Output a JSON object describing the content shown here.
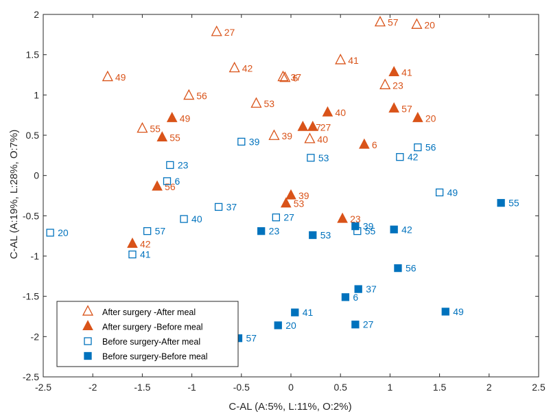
{
  "chart_data": {
    "type": "scatter",
    "xlabel": "C-AL (A:5%, L:11%, O:2%)",
    "ylabel": "C-AL (A:19%, L:28%, O:7%)",
    "xlim": [
      -2.5,
      2.5
    ],
    "ylim": [
      -2.5,
      2
    ],
    "xticks": [
      "-2.5",
      "-2",
      "-1.5",
      "-1",
      "-0.5",
      "0",
      "0.5",
      "1",
      "1.5",
      "2",
      "2.5"
    ],
    "yticks": [
      "-2.5",
      "-2",
      "-1.5",
      "-1",
      "-0.5",
      "0",
      "0.5",
      "1",
      "1.5",
      "2"
    ],
    "grid": false,
    "legend_position": "bottom-left",
    "colors": {
      "orange": "#d95319",
      "blue": "#0072bd"
    },
    "series": [
      {
        "name": "After surgery -After meal",
        "marker": "triangle-open",
        "color": "#d95319",
        "points": [
          {
            "x": -0.75,
            "y": 1.78,
            "label": "27"
          },
          {
            "x": 0.9,
            "y": 1.9,
            "label": "57"
          },
          {
            "x": 1.27,
            "y": 1.87,
            "label": "20"
          },
          {
            "x": -0.57,
            "y": 1.33,
            "label": "42"
          },
          {
            "x": 0.5,
            "y": 1.43,
            "label": "41"
          },
          {
            "x": -1.85,
            "y": 1.22,
            "label": "49"
          },
          {
            "x": -0.08,
            "y": 1.22,
            "label": "37"
          },
          {
            "x": -0.06,
            "y": 1.21,
            "label": "6"
          },
          {
            "x": 0.95,
            "y": 1.12,
            "label": "23"
          },
          {
            "x": -1.03,
            "y": 0.99,
            "label": "56"
          },
          {
            "x": -0.35,
            "y": 0.89,
            "label": "53"
          },
          {
            "x": -1.5,
            "y": 0.58,
            "label": "55"
          },
          {
            "x": -0.17,
            "y": 0.49,
            "label": "39"
          },
          {
            "x": 0.19,
            "y": 0.45,
            "label": "40"
          }
        ]
      },
      {
        "name": "After surgery -Before meal",
        "marker": "triangle-filled",
        "color": "#d95319",
        "points": [
          {
            "x": 1.04,
            "y": 1.28,
            "label": "41"
          },
          {
            "x": 1.04,
            "y": 0.83,
            "label": "57"
          },
          {
            "x": 1.28,
            "y": 0.71,
            "label": "20"
          },
          {
            "x": 0.37,
            "y": 0.78,
            "label": "40"
          },
          {
            "x": -1.2,
            "y": 0.71,
            "label": "49"
          },
          {
            "x": 0.12,
            "y": 0.6,
            "label": "37"
          },
          {
            "x": 0.22,
            "y": 0.6,
            "label": "27"
          },
          {
            "x": -1.3,
            "y": 0.47,
            "label": "55"
          },
          {
            "x": 0.74,
            "y": 0.38,
            "label": "6"
          },
          {
            "x": -1.35,
            "y": -0.14,
            "label": "56"
          },
          {
            "x": 0.0,
            "y": -0.25,
            "label": "39"
          },
          {
            "x": -0.05,
            "y": -0.35,
            "label": "53"
          },
          {
            "x": 0.52,
            "y": -0.54,
            "label": "23"
          },
          {
            "x": -1.6,
            "y": -0.85,
            "label": "42"
          }
        ]
      },
      {
        "name": "Before surgery-After meal",
        "marker": "square-open",
        "color": "#0072bd",
        "points": [
          {
            "x": -0.5,
            "y": 0.42,
            "label": "39"
          },
          {
            "x": 0.2,
            "y": 0.22,
            "label": "53"
          },
          {
            "x": 1.28,
            "y": 0.35,
            "label": "56"
          },
          {
            "x": 1.1,
            "y": 0.23,
            "label": "42"
          },
          {
            "x": -1.22,
            "y": 0.13,
            "label": "23"
          },
          {
            "x": -1.25,
            "y": -0.07,
            "label": "6"
          },
          {
            "x": 1.5,
            "y": -0.21,
            "label": "49"
          },
          {
            "x": -0.73,
            "y": -0.39,
            "label": "37"
          },
          {
            "x": -1.08,
            "y": -0.54,
            "label": "40"
          },
          {
            "x": -0.15,
            "y": -0.52,
            "label": "27"
          },
          {
            "x": -1.45,
            "y": -0.69,
            "label": "57"
          },
          {
            "x": -2.43,
            "y": -0.71,
            "label": "20"
          },
          {
            "x": -1.6,
            "y": -0.98,
            "label": "41"
          },
          {
            "x": 0.67,
            "y": -0.69,
            "label": "55"
          }
        ]
      },
      {
        "name": "Before surgery-Before meal",
        "marker": "square-filled",
        "color": "#0072bd",
        "points": [
          {
            "x": 2.12,
            "y": -0.34,
            "label": "55"
          },
          {
            "x": 0.65,
            "y": -0.63,
            "label": "39"
          },
          {
            "x": 1.04,
            "y": -0.67,
            "label": "42"
          },
          {
            "x": -0.3,
            "y": -0.69,
            "label": "23"
          },
          {
            "x": 0.22,
            "y": -0.74,
            "label": "53"
          },
          {
            "x": 1.08,
            "y": -1.15,
            "label": "56"
          },
          {
            "x": 0.68,
            "y": -1.41,
            "label": "37"
          },
          {
            "x": 0.55,
            "y": -1.51,
            "label": "6"
          },
          {
            "x": 0.04,
            "y": -1.7,
            "label": "41"
          },
          {
            "x": 1.56,
            "y": -1.69,
            "label": "49"
          },
          {
            "x": -0.13,
            "y": -1.86,
            "label": "20"
          },
          {
            "x": 0.65,
            "y": -1.85,
            "label": "27"
          },
          {
            "x": -0.53,
            "y": -2.02,
            "label": "57"
          }
        ]
      }
    ]
  }
}
